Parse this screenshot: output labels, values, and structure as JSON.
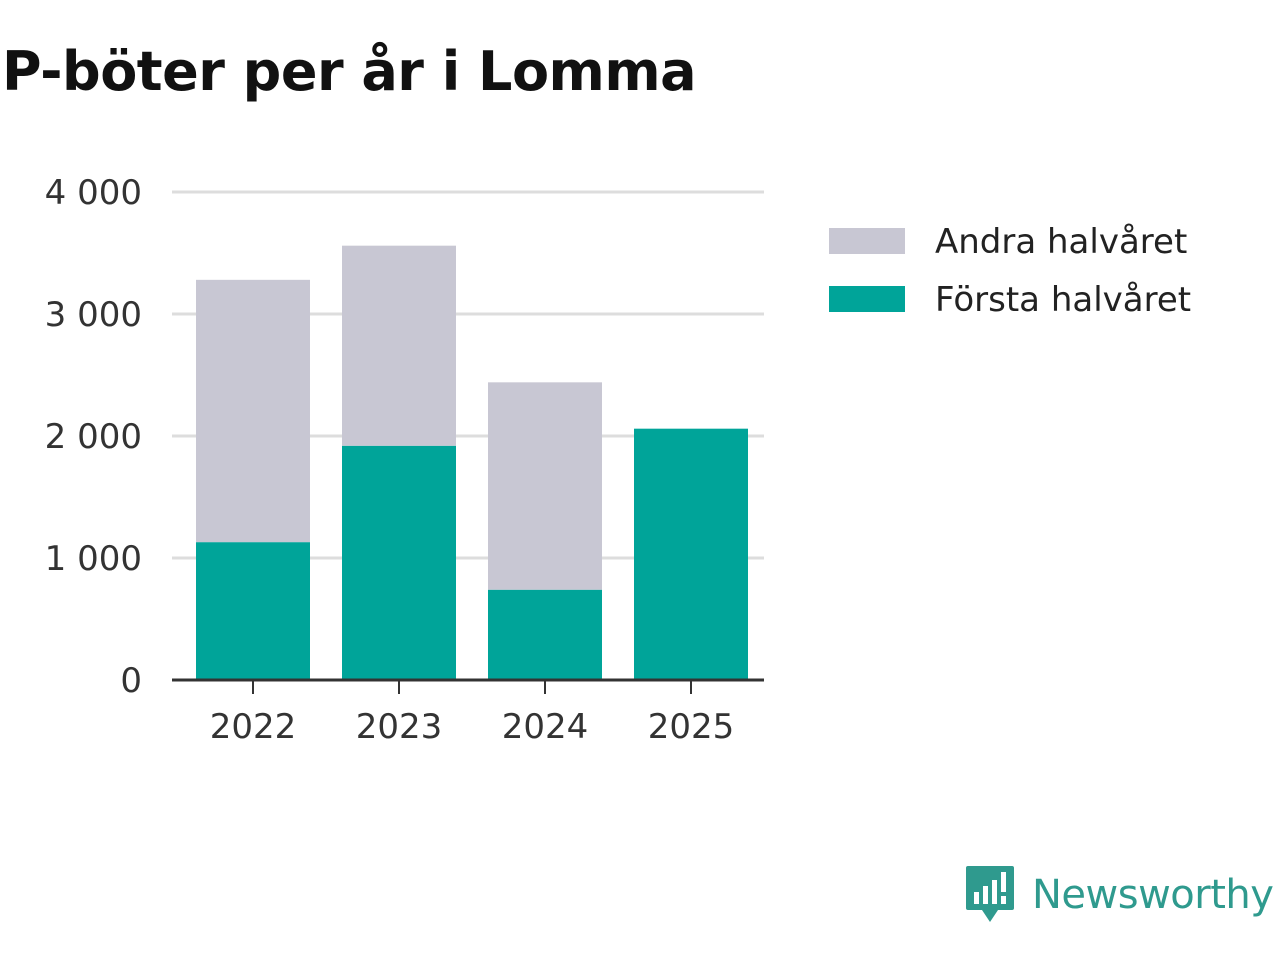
{
  "title": "P-böter per år i Lomma",
  "brand": {
    "name": "Newsworthy",
    "color": "#2f9a8e"
  },
  "chart_data": {
    "type": "bar",
    "stacked": true,
    "title": "P-böter per år i Lomma",
    "xlabel": "",
    "ylabel": "",
    "categories": [
      "2022",
      "2023",
      "2024",
      "2025"
    ],
    "ylim": [
      0,
      4000
    ],
    "yticks": [
      0,
      1000,
      2000,
      3000,
      4000
    ],
    "ytick_labels": [
      "0",
      "1 000",
      "2 000",
      "3 000",
      "4 000"
    ],
    "grid": true,
    "legend_position": "right",
    "series": [
      {
        "name": "Första halvåret",
        "color": "#00a499",
        "values": [
          1130,
          1920,
          740,
          2060
        ]
      },
      {
        "name": "Andra halvåret",
        "color": "#c8c7d3",
        "values": [
          2150,
          1640,
          1700,
          0
        ]
      }
    ],
    "legend_order": [
      "Andra halvåret",
      "Första halvåret"
    ]
  }
}
